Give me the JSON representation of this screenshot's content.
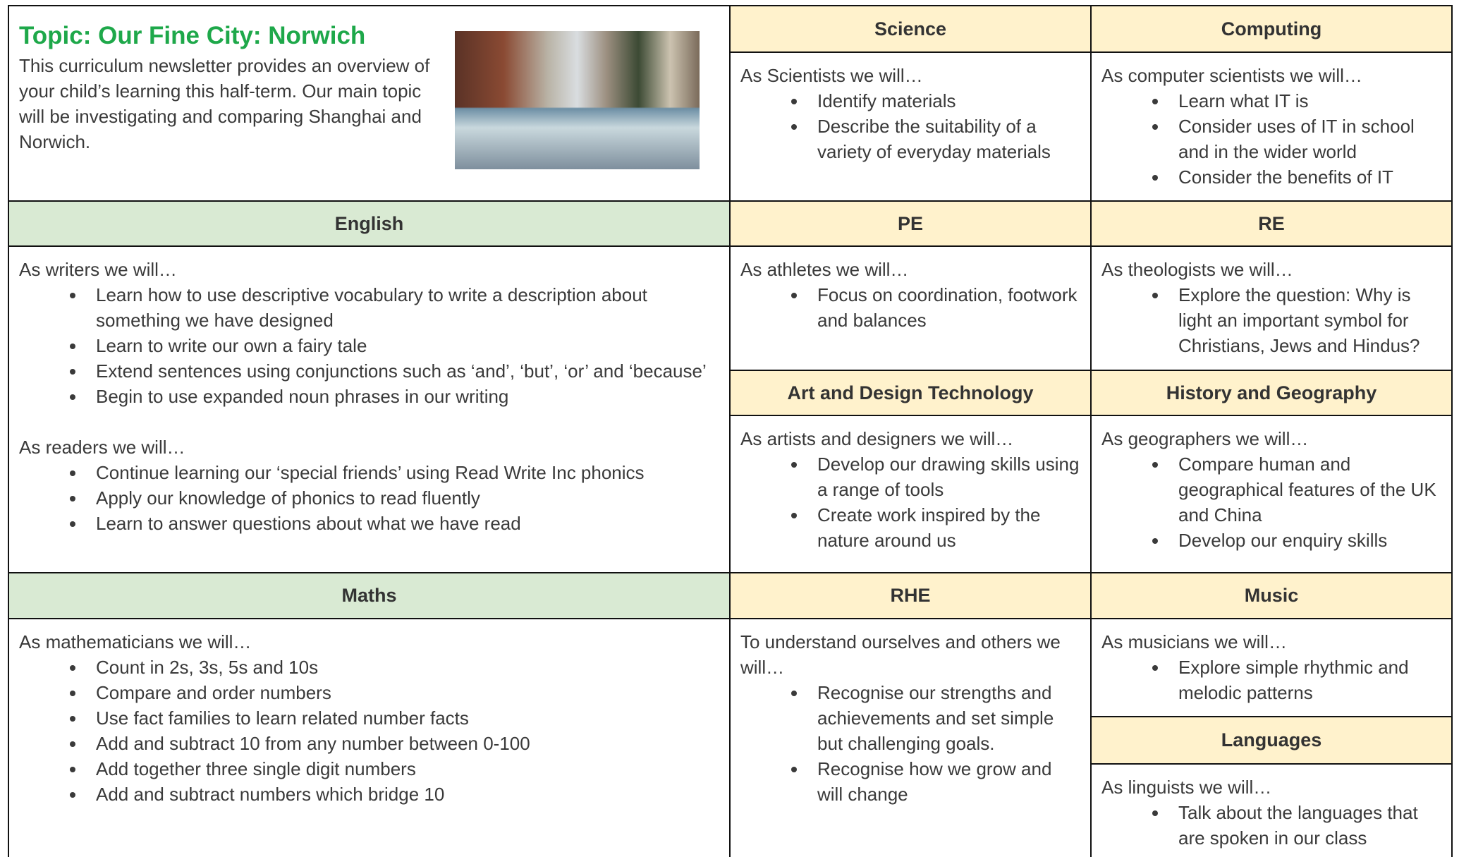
{
  "topic": {
    "title": "Topic: Our Fine City: Norwich",
    "intro": "This curriculum newsletter provides an overview of your child’s learning this half-term. Our main topic will be investigating and comparing Shanghai and Norwich."
  },
  "sections": [
    {
      "heading": "Science",
      "groups": [
        {
          "intro": "As Scientists we will…",
          "bullets": [
            "Identify materials",
            "Describe the suitability of a variety of everyday materials"
          ]
        }
      ]
    },
    {
      "heading": "Computing",
      "groups": [
        {
          "intro": "As computer scientists we will…",
          "bullets": [
            "Learn what IT is",
            "Consider uses of IT in school and in the wider world",
            "Consider the benefits of IT"
          ]
        }
      ]
    },
    {
      "heading": "English",
      "groups": [
        {
          "intro": "As writers we will…",
          "bullets": [
            "Learn how to use descriptive vocabulary to write a description about something we have designed",
            "Learn to write our own a fairy tale",
            "Extend sentences using conjunctions such as ‘and’, ‘but’, ‘or’ and ‘because’",
            "Begin to use expanded noun phrases in our writing"
          ]
        },
        {
          "intro": "As readers we will…",
          "bullets": [
            "Continue learning our ‘special friends’ using Read Write Inc phonics",
            "Apply our knowledge of phonics to read fluently",
            "Learn to answer questions about what we have read"
          ]
        }
      ]
    },
    {
      "heading": "PE",
      "groups": [
        {
          "intro": "As athletes we will…",
          "bullets": [
            "Focus on coordination, footwork and balances"
          ]
        }
      ]
    },
    {
      "heading": "RE",
      "groups": [
        {
          "intro": "As theologists we will…",
          "bullets": [
            "Explore the question: Why is light an important symbol for Christians, Jews and Hindus?"
          ]
        }
      ]
    },
    {
      "heading": "Art and Design Technology",
      "groups": [
        {
          "intro": "As artists and designers we will…",
          "bullets": [
            "Develop our drawing skills using a range of tools",
            "Create work inspired by the nature around us"
          ]
        }
      ]
    },
    {
      "heading": "History and Geography",
      "groups": [
        {
          "intro": "As geographers we will…",
          "bullets": [
            "Compare human and geographical features of the UK and China",
            "Develop our enquiry skills"
          ]
        }
      ]
    },
    {
      "heading": "Maths",
      "groups": [
        {
          "intro": "As mathematicians we will…",
          "bullets": [
            "Count in 2s, 3s, 5s and 10s",
            "Compare and order numbers",
            "Use fact families to learn related number facts",
            "Add and subtract 10 from any number between 0-100",
            "Add together three single digit numbers",
            "Add and subtract numbers which bridge 10"
          ]
        }
      ]
    },
    {
      "heading": "RHE",
      "groups": [
        {
          "intro": "To understand ourselves and others we will…",
          "bullets": [
            "Recognise our strengths and achievements and set simple but challenging goals.",
            "Recognise how we grow and will change"
          ]
        }
      ]
    },
    {
      "heading": "Music",
      "groups": [
        {
          "intro": "As musicians we will…",
          "bullets": [
            "Explore simple rhythmic and melodic patterns"
          ]
        }
      ]
    },
    {
      "heading": "Languages",
      "groups": [
        {
          "intro": "As linguists we will…",
          "bullets": [
            "Talk about the languages that are spoken in our class"
          ]
        }
      ]
    }
  ]
}
